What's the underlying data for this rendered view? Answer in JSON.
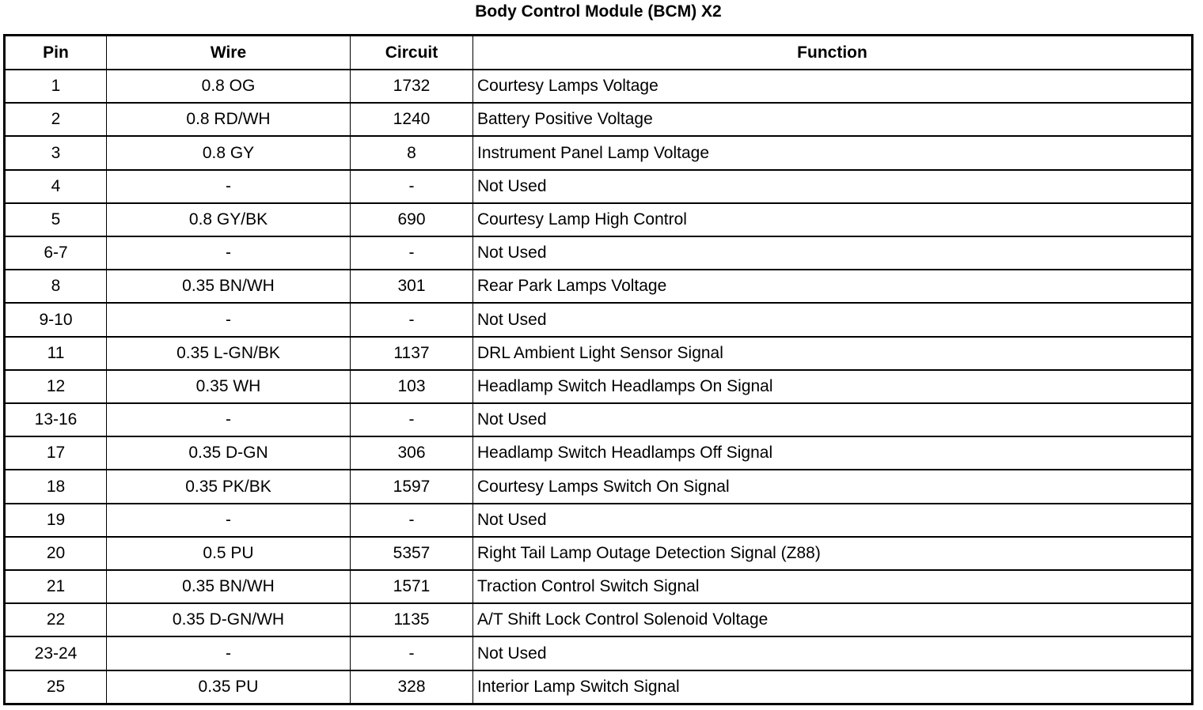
{
  "title": "Body Control Module (BCM) X2",
  "headers": [
    "Pin",
    "Wire",
    "Circuit",
    "Function"
  ],
  "rows": [
    [
      "1",
      "0.8 OG",
      "1732",
      "Courtesy Lamps Voltage"
    ],
    [
      "2",
      "0.8 RD/WH",
      "1240",
      "Battery Positive Voltage"
    ],
    [
      "3",
      "0.8 GY",
      "8",
      "Instrument Panel Lamp Voltage"
    ],
    [
      "4",
      "-",
      "-",
      "Not Used"
    ],
    [
      "5",
      "0.8 GY/BK",
      "690",
      "Courtesy Lamp High Control"
    ],
    [
      "6-7",
      "-",
      "-",
      "Not Used"
    ],
    [
      "8",
      "0.35 BN/WH",
      "301",
      "Rear Park Lamps Voltage"
    ],
    [
      "9-10",
      "-",
      "-",
      "Not Used"
    ],
    [
      "11",
      "0.35 L-GN/BK",
      "1137",
      "DRL Ambient Light Sensor Signal"
    ],
    [
      "12",
      "0.35 WH",
      "103",
      "Headlamp Switch Headlamps On Signal"
    ],
    [
      "13-16",
      "-",
      "-",
      "Not Used"
    ],
    [
      "17",
      "0.35 D-GN",
      "306",
      "Headlamp Switch Headlamps Off Signal"
    ],
    [
      "18",
      "0.35 PK/BK",
      "1597",
      "Courtesy Lamps Switch On Signal"
    ],
    [
      "19",
      "-",
      "-",
      "Not Used"
    ],
    [
      "20",
      "0.5 PU",
      "5357",
      "Right Tail Lamp Outage Detection Signal (Z88)"
    ],
    [
      "21",
      "0.35 BN/WH",
      "1571",
      "Traction Control Switch Signal"
    ],
    [
      "22",
      "0.35 D-GN/WH",
      "1135",
      "A/T Shift Lock Control Solenoid Voltage"
    ],
    [
      "23-24",
      "-",
      "-",
      "Not Used"
    ],
    [
      "25",
      "0.35 PU",
      "328",
      "Interior Lamp Switch Signal"
    ]
  ]
}
